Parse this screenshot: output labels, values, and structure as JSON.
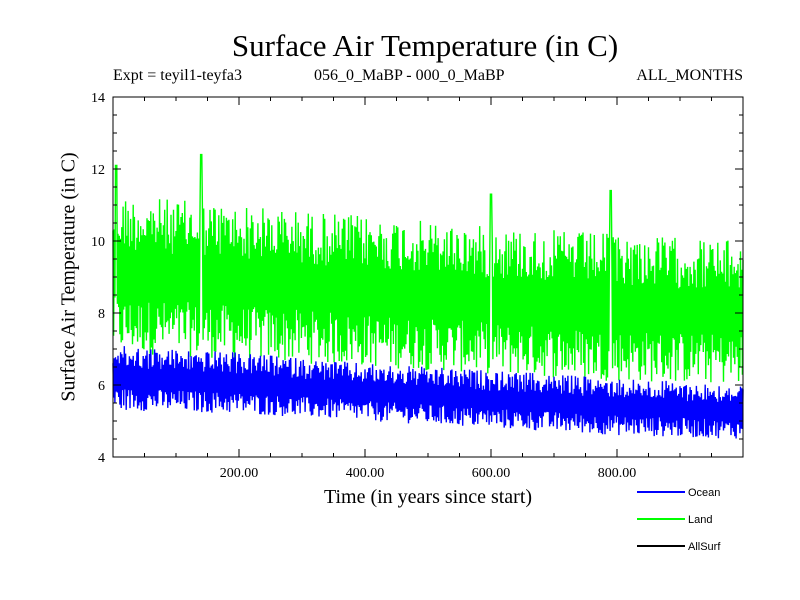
{
  "chart_data": {
    "type": "line",
    "title": "Surface Air Temperature (in C)",
    "subtitle_left": "Expt = teyil1-teyfa3",
    "subtitle_center": "056_0_MaBP - 000_0_MaBP",
    "subtitle_right": "ALL_MONTHS",
    "xlabel": "Time (in years since start)",
    "ylabel": "Surface Air Temperature (in C)",
    "xlim": [
      0,
      1000
    ],
    "ylim": [
      4,
      14
    ],
    "xticks": [
      "200.00",
      "400.00",
      "600.00",
      "800.00"
    ],
    "xtick_values": [
      200,
      400,
      600,
      800
    ],
    "yticks": [
      "4",
      "6",
      "8",
      "10",
      "12",
      "14"
    ],
    "ytick_values": [
      4,
      6,
      8,
      10,
      12,
      14
    ],
    "series": [
      {
        "name": "Ocean",
        "color": "#0000ff",
        "trend_x": [
          0,
          200,
          400,
          600,
          800,
          1000
        ],
        "upper": [
          7.1,
          6.9,
          6.6,
          6.4,
          6.2,
          6.0
        ],
        "lower": [
          5.3,
          5.2,
          5.0,
          4.8,
          4.6,
          4.5
        ]
      },
      {
        "name": "Land",
        "color": "#00ff00",
        "trend_x": [
          0,
          200,
          400,
          600,
          800,
          1000
        ],
        "upper": [
          11.3,
          11.0,
          10.7,
          10.4,
          10.2,
          10.0
        ],
        "lower": [
          6.9,
          6.7,
          6.5,
          6.3,
          6.1,
          6.0
        ],
        "peaks": [
          [
            5,
            12.1
          ],
          [
            140,
            12.4
          ],
          [
            600,
            11.3
          ],
          [
            790,
            11.4
          ]
        ]
      },
      {
        "name": "AllSurf",
        "color": "#000000",
        "trend_x": [],
        "upper": [],
        "lower": []
      }
    ]
  }
}
